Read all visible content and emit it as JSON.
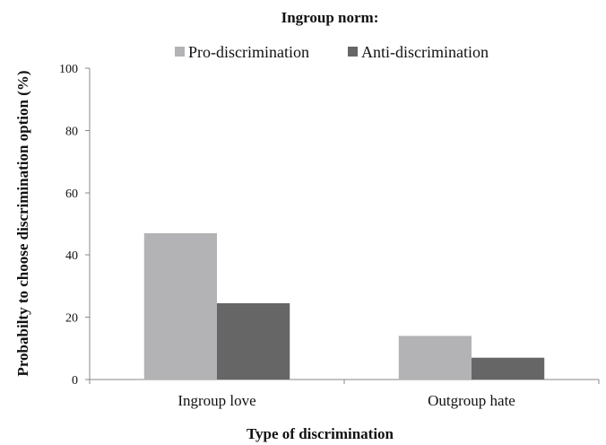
{
  "chart_data": {
    "type": "bar",
    "title": "Ingroup norm:",
    "xlabel": "Type of discrimination",
    "ylabel": "Probabilty to choose discrimination option (%)",
    "categories": [
      "Ingroup love",
      "Outgroup hate"
    ],
    "series": [
      {
        "name": "Pro-discrimination",
        "values": [
          47,
          14
        ],
        "color": "#b3b3b5"
      },
      {
        "name": "Anti-discrimination",
        "values": [
          24.5,
          7
        ],
        "color": "#666666"
      }
    ],
    "ylim": [
      0,
      100
    ],
    "yticks": [
      "0",
      "20",
      "40",
      "60",
      "80",
      "100"
    ],
    "grid": false,
    "legend_position": "top"
  }
}
